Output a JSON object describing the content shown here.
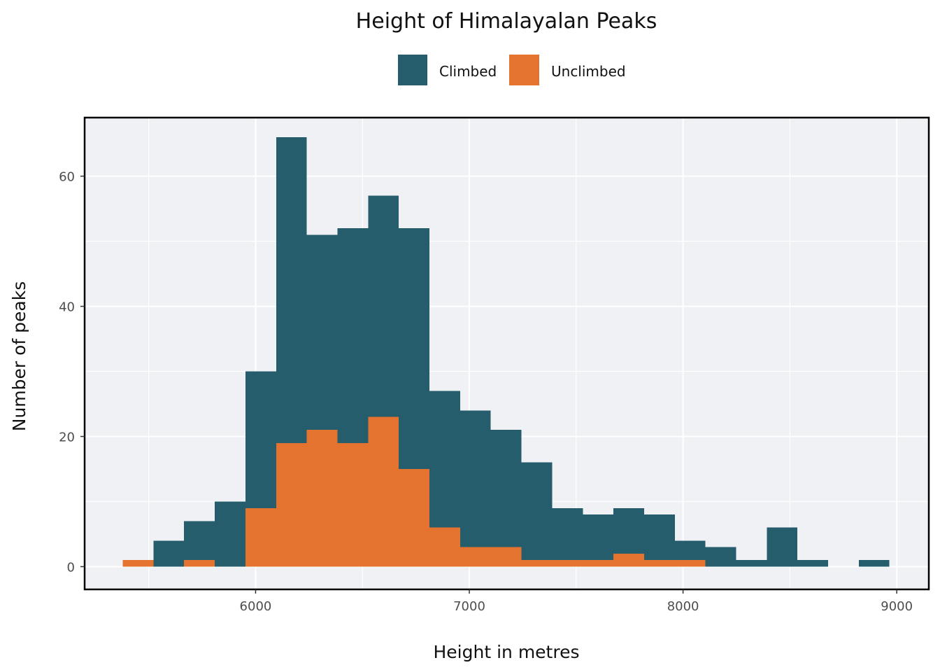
{
  "chart_data": {
    "type": "bar",
    "subtype": "overlaid-histogram",
    "title": "Height of Himalayalan Peaks",
    "xlabel": "Height in metres",
    "ylabel": "Number of peaks",
    "xlim": [
      5200,
      9150
    ],
    "ylim": [
      -3.5,
      69
    ],
    "x_ticks": [
      6000,
      7000,
      8000,
      9000
    ],
    "y_ticks": [
      0,
      20,
      40,
      60
    ],
    "bin_width": 143.5,
    "legend_position": "top",
    "grid": true,
    "series": [
      {
        "name": "Climbed",
        "color": "#255D6D",
        "bins": [
          {
            "x0": 5521.9,
            "x1": 5665.4,
            "count": 4
          },
          {
            "x0": 5665.4,
            "x1": 5808.9,
            "count": 7
          },
          {
            "x0": 5808.9,
            "x1": 5952.4,
            "count": 10
          },
          {
            "x0": 5952.4,
            "x1": 6095.9,
            "count": 30
          },
          {
            "x0": 6095.9,
            "x1": 6239.4,
            "count": 66
          },
          {
            "x0": 6239.4,
            "x1": 6382.9,
            "count": 51
          },
          {
            "x0": 6382.9,
            "x1": 6526.4,
            "count": 52
          },
          {
            "x0": 6526.4,
            "x1": 6669.9,
            "count": 57
          },
          {
            "x0": 6669.9,
            "x1": 6813.4,
            "count": 52
          },
          {
            "x0": 6813.4,
            "x1": 6956.9,
            "count": 27
          },
          {
            "x0": 6956.9,
            "x1": 7100.4,
            "count": 24
          },
          {
            "x0": 7100.4,
            "x1": 7243.9,
            "count": 21
          },
          {
            "x0": 7243.9,
            "x1": 7387.4,
            "count": 16
          },
          {
            "x0": 7387.4,
            "x1": 7530.9,
            "count": 9
          },
          {
            "x0": 7530.9,
            "x1": 7674.4,
            "count": 8
          },
          {
            "x0": 7674.4,
            "x1": 7817.9,
            "count": 9
          },
          {
            "x0": 7817.9,
            "x1": 7961.4,
            "count": 8
          },
          {
            "x0": 7961.4,
            "x1": 8104.9,
            "count": 4
          },
          {
            "x0": 8104.9,
            "x1": 8248.4,
            "count": 3
          },
          {
            "x0": 8248.4,
            "x1": 8391.9,
            "count": 1
          },
          {
            "x0": 8391.9,
            "x1": 8535.4,
            "count": 6
          },
          {
            "x0": 8535.4,
            "x1": 8678.9,
            "count": 1
          },
          {
            "x0": 8822.4,
            "x1": 8965.9,
            "count": 1
          }
        ]
      },
      {
        "name": "Unclimbed",
        "color": "#E3732E",
        "bins": [
          {
            "x0": 5378.4,
            "x1": 5521.9,
            "count": 1
          },
          {
            "x0": 5665.4,
            "x1": 5808.9,
            "count": 1
          },
          {
            "x0": 5952.4,
            "x1": 6095.9,
            "count": 9
          },
          {
            "x0": 6095.9,
            "x1": 6239.4,
            "count": 19
          },
          {
            "x0": 6239.4,
            "x1": 6382.9,
            "count": 21
          },
          {
            "x0": 6382.9,
            "x1": 6526.4,
            "count": 19
          },
          {
            "x0": 6526.4,
            "x1": 6669.9,
            "count": 23
          },
          {
            "x0": 6669.9,
            "x1": 6813.4,
            "count": 15
          },
          {
            "x0": 6813.4,
            "x1": 6956.9,
            "count": 6
          },
          {
            "x0": 6956.9,
            "x1": 7100.4,
            "count": 3
          },
          {
            "x0": 7100.4,
            "x1": 7243.9,
            "count": 3
          },
          {
            "x0": 7243.9,
            "x1": 7387.4,
            "count": 1
          },
          {
            "x0": 7387.4,
            "x1": 7530.9,
            "count": 1
          },
          {
            "x0": 7530.9,
            "x1": 7674.4,
            "count": 1
          },
          {
            "x0": 7674.4,
            "x1": 7817.9,
            "count": 2
          },
          {
            "x0": 7817.9,
            "x1": 7961.4,
            "count": 1
          },
          {
            "x0": 7961.4,
            "x1": 8104.9,
            "count": 1
          }
        ]
      }
    ]
  }
}
